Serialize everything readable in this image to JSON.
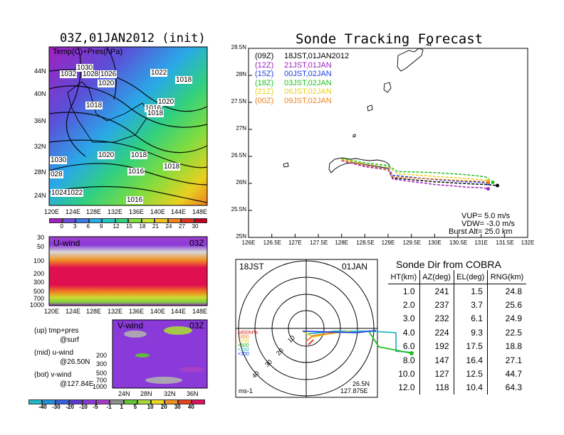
{
  "left": {
    "init_title": "03Z,01JAN2012 (init)",
    "map": {
      "legend": "Temp(C)+Pres(hPa)",
      "lat_labels": [
        "44N",
        "40N",
        "36N",
        "32N",
        "28N",
        "24N"
      ],
      "lon_labels": [
        "120E",
        "124E",
        "128E",
        "132E",
        "136E",
        "140E",
        "144E",
        "148E"
      ],
      "isobar_labels": [
        "1030",
        "1032",
        "1028",
        "1026",
        "1020",
        "1018",
        "1022",
        "1018",
        "1020",
        "1016",
        "1018",
        "1030",
        "1020",
        "1018",
        "028",
        "1016",
        "1018",
        "1024",
        "1022",
        "1016"
      ],
      "colorbar_ticks": [
        "0",
        "3",
        "6",
        "9",
        "12",
        "15",
        "18",
        "21",
        "24",
        "27",
        "30"
      ],
      "colorbar_colors": [
        "#a020c0",
        "#6a4cd8",
        "#3a78e8",
        "#2aa8e8",
        "#22c8c0",
        "#30d080",
        "#80dc40",
        "#c8e030",
        "#f0c020",
        "#f08020",
        "#e03020",
        "#c00020"
      ]
    },
    "uwind": {
      "label": "U-wind",
      "time": "03Z",
      "y_ticks": [
        "30",
        "50",
        "100",
        "200",
        "300",
        "500",
        "700",
        "1000"
      ],
      "x_ticks": [
        "120E",
        "124E",
        "128E",
        "132E",
        "136E",
        "140E",
        "144E",
        "148E"
      ]
    },
    "vwind": {
      "label": "V-wind",
      "time": "03Z",
      "y_ticks": [
        "200",
        "300",
        "500",
        "700",
        "1000"
      ],
      "x_ticks": [
        "24N",
        "28N",
        "32N",
        "36N"
      ]
    },
    "notes": [
      {
        "a": "(up)  tmp+pres",
        "b": "@surf"
      },
      {
        "a": "(mid)  u-wind",
        "b": "@26.50N"
      },
      {
        "a": "(bot)  v-wind",
        "b": "@127.84E"
      }
    ],
    "wind_bar": {
      "ticks": [
        "-40",
        "-30",
        "-20",
        "-10",
        "-5",
        "-1",
        "1",
        "5",
        "10",
        "20",
        "30",
        "40"
      ],
      "colors": [
        "#1fb8c8",
        "#2090e0",
        "#3060e0",
        "#5a3ad0",
        "#8a3ad8",
        "#a83ac8",
        "#909090",
        "#60c830",
        "#a8d838",
        "#f0d820",
        "#f09020",
        "#e84020",
        "#e01060"
      ]
    }
  },
  "forecast": {
    "title": "Sonde Tracking Forecast",
    "lat_labels": [
      "28.5N",
      "28N",
      "27.5N",
      "27N",
      "26.5N",
      "26N",
      "25.5N",
      "25N"
    ],
    "lon_labels": [
      "126E",
      "126.5E",
      "127E",
      "127.5E",
      "128E",
      "128.5E",
      "129E",
      "129.5E",
      "130E",
      "130.5E",
      "131E",
      "131.5E",
      "132E"
    ],
    "legend": [
      {
        "code": "(09Z)",
        "time": "18JST,01JAN2012",
        "color": "#000000"
      },
      {
        "code": "(12Z)",
        "time": "21JST,01JAN",
        "color": "#a020c0"
      },
      {
        "code": "(15Z)",
        "time": "00JST,02JAN",
        "color": "#2040e0"
      },
      {
        "code": "(18Z)",
        "time": "03JST,02JAN",
        "color": "#20c020"
      },
      {
        "code": "(21Z)",
        "time": "06JST,02JAN",
        "color": "#e8d020"
      },
      {
        "code": "(00Z)",
        "time": "09JST,02JAN",
        "color": "#f08020"
      }
    ],
    "params": [
      "VUP=  5.0  m/s",
      "VDW=  -3.0  m/s",
      "Burst Alt=  25.0  km"
    ]
  },
  "chart_data": {
    "type": "line",
    "title": "Sonde Tracking Forecast",
    "xlim": [
      126,
      132
    ],
    "ylim": [
      25,
      28.5
    ],
    "series": [
      {
        "name": "(09Z) 18JST,01JAN2012",
        "lon": [
          128.0,
          128.5,
          129.0,
          129.1,
          130.0,
          130.8,
          131.1,
          131.35
        ],
        "lat": [
          26.43,
          26.32,
          26.27,
          26.1,
          26.03,
          25.99,
          25.98,
          25.96
        ]
      },
      {
        "name": "(12Z) 21JST,01JAN",
        "lon": [
          128.0,
          128.5,
          129.0,
          129.1,
          130.0,
          130.7,
          131.0,
          131.15
        ],
        "lat": [
          26.42,
          26.31,
          26.25,
          26.08,
          25.98,
          25.93,
          25.92,
          25.9
        ]
      },
      {
        "name": "(15Z) 00JST,02JAN",
        "lon": [
          128.0,
          128.5,
          129.0,
          129.1,
          130.0,
          130.7,
          131.0,
          131.15
        ],
        "lat": [
          26.44,
          26.34,
          26.28,
          26.15,
          26.07,
          26.03,
          26.02,
          26.0
        ]
      },
      {
        "name": "(18Z) 03JST,02JAN",
        "lon": [
          128.0,
          128.5,
          129.0,
          129.2,
          130.0,
          130.7,
          131.1,
          131.25
        ],
        "lat": [
          26.46,
          26.38,
          26.33,
          26.22,
          26.2,
          26.16,
          26.12,
          26.02
        ]
      },
      {
        "name": "(21Z) 06JST,02JAN",
        "lon": [
          128.0,
          128.5,
          129.0,
          129.2,
          130.0,
          130.7,
          131.0,
          131.15
        ],
        "lat": [
          26.45,
          26.36,
          26.3,
          26.18,
          26.13,
          26.09,
          26.07,
          26.05
        ]
      },
      {
        "name": "(00Z) 09JST,02JAN",
        "lon": [
          128.0,
          128.5,
          129.0,
          129.1,
          130.0,
          130.6,
          131.0,
          131.15
        ],
        "lat": [
          26.43,
          26.33,
          26.26,
          26.12,
          26.08,
          26.05,
          26.04,
          26.02
        ]
      }
    ]
  },
  "radar": {
    "time_label": "18JST",
    "date_label": "01JAN",
    "coord_line1": "26.5N",
    "coord_line2": "127.875E",
    "unit": "ms-1",
    "ring_labels": [
      "10",
      "20",
      "30",
      "40"
    ],
    "levels": [
      {
        "text": "≥850hPa",
        "color": "#e02020"
      },
      {
        "text": "<850",
        "color": "#f08020"
      },
      {
        "text": "<700",
        "color": "#e8c820"
      },
      {
        "text": "<500",
        "color": "#20b020"
      },
      {
        "text": "<250",
        "color": "#20b8c0"
      },
      {
        "text": "<100",
        "color": "#2040e0"
      }
    ]
  },
  "sonde_table": {
    "title": "Sonde Dir from COBRA",
    "headers": [
      "HT(km)",
      "AZ(deg)",
      "EL(deg)",
      "RNG(km)"
    ],
    "rows": [
      [
        "1.0",
        "241",
        "1.5",
        "24.8"
      ],
      [
        "2.0",
        "237",
        "3.7",
        "25.6"
      ],
      [
        "3.0",
        "232",
        "6.1",
        "24.9"
      ],
      [
        "4.0",
        "224",
        "9.3",
        "22.5"
      ],
      [
        "6.0",
        "192",
        "17.5",
        "18.8"
      ],
      [
        "8.0",
        "147",
        "16.4",
        "27.1"
      ],
      [
        "10.0",
        "127",
        "12.5",
        "44.7"
      ],
      [
        "12.0",
        "118",
        "10.4",
        "64.3"
      ]
    ]
  }
}
